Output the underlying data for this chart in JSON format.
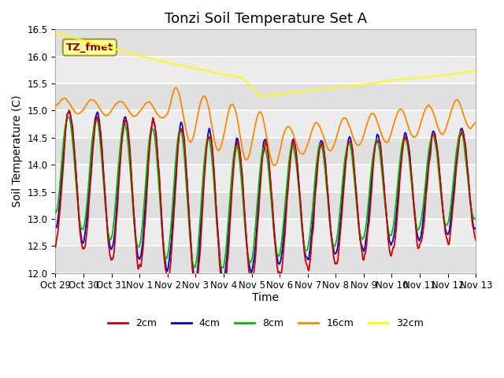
{
  "title": "Tonzi Soil Temperature Set A",
  "xlabel": "Time",
  "ylabel": "Soil Temperature (C)",
  "ylim": [
    12.0,
    16.5
  ],
  "annotation_text": "TZ_fmet",
  "colors": {
    "2cm": "#cc0000",
    "4cm": "#0000cc",
    "8cm": "#00bb00",
    "16cm": "#ff8800",
    "32cm": "#ffff00"
  },
  "x_tick_labels": [
    "Oct 29",
    "Oct 30",
    "Oct 31",
    "Nov 1",
    "Nov 2",
    "Nov 3",
    "Nov 4",
    "Nov 5",
    "Nov 6",
    "Nov 7",
    "Nov 8",
    "Nov 9",
    "Nov 10",
    "Nov 11",
    "Nov 12",
    "Nov 13"
  ],
  "background_color": "#ffffff",
  "plot_bg_color": "#e8e8e8",
  "grid_color": "#ffffff",
  "title_fontsize": 13,
  "axis_fontsize": 10,
  "tick_fontsize": 8.5
}
